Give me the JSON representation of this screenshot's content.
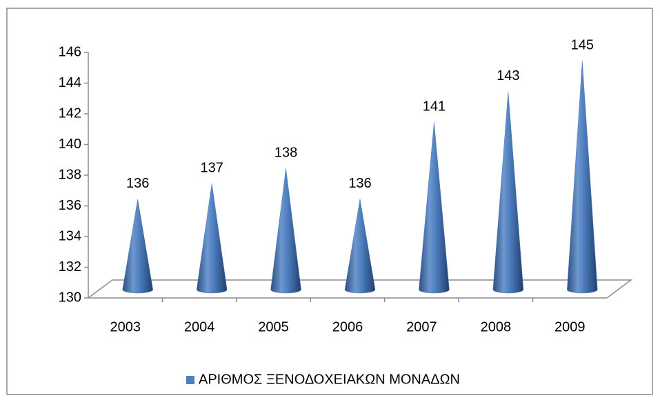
{
  "chart_data": {
    "type": "cone",
    "categories": [
      "2003",
      "2004",
      "2005",
      "2006",
      "2007",
      "2008",
      "2009"
    ],
    "series": [
      {
        "name": "ΑΡΙΘΜΟΣ ΞΕΝΟΔΟΧΕΙΑΚΩΝ ΜΟΝΑΔΩΝ",
        "color": "#4f81bd",
        "values": [
          136,
          137,
          138,
          136,
          141,
          143,
          145
        ]
      }
    ],
    "ylim": [
      130,
      146
    ],
    "yticks": [
      130,
      132,
      134,
      136,
      138,
      140,
      142,
      144,
      146
    ],
    "grid": false,
    "legend": "bottom"
  }
}
